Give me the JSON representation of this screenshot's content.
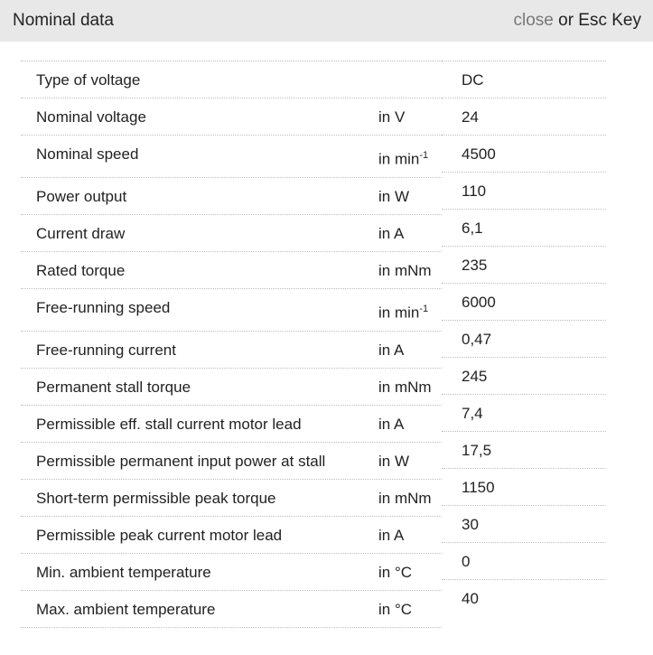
{
  "header": {
    "title": "Nominal data",
    "close_label": "close",
    "close_suffix": " or Esc Key"
  },
  "rows": [
    {
      "label": "Type of voltage",
      "unit": "",
      "value": "DC"
    },
    {
      "label": "Nominal voltage",
      "unit": "in V",
      "value": "24"
    },
    {
      "label": "Nominal speed",
      "unit": "in min",
      "unit_sup": "-1",
      "value": "4500"
    },
    {
      "label": "Power output",
      "unit": "in W",
      "value": "110"
    },
    {
      "label": "Current draw",
      "unit": "in A",
      "value": "6,1"
    },
    {
      "label": "Rated torque",
      "unit": "in mNm",
      "value": "235"
    },
    {
      "label": "Free-running speed",
      "unit": "in min",
      "unit_sup": "-1",
      "value": "6000"
    },
    {
      "label": "Free-running current",
      "unit": "in A",
      "value": "0,47"
    },
    {
      "label": "Permanent stall torque",
      "unit": "in mNm",
      "value": "245"
    },
    {
      "label": "Permissible eff. stall current motor lead",
      "unit": "in A",
      "value": "7,4"
    },
    {
      "label": "Permissible permanent input power at stall",
      "unit": "in W",
      "value": "17,5"
    },
    {
      "label": "Short-term permissible peak torque",
      "unit": "in mNm",
      "value": "1150"
    },
    {
      "label": "Permissible peak current motor lead",
      "unit": "in A",
      "value": "30"
    },
    {
      "label": "Min. ambient temperature",
      "unit": "in °C",
      "value": "0"
    },
    {
      "label": "Max. ambient temperature",
      "unit": "in °C",
      "value": "40"
    }
  ]
}
